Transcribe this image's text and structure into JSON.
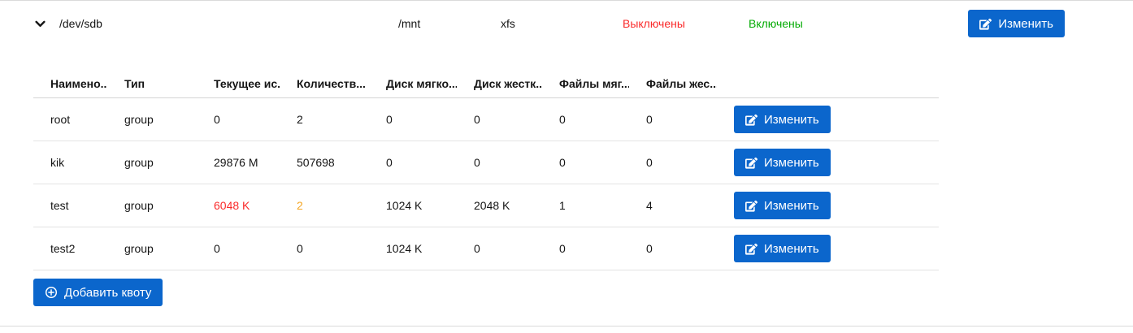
{
  "colors": {
    "primary": "#0b66cc",
    "danger": "#fa2a2a",
    "success": "#04ab04",
    "warning": "#f5a623"
  },
  "device_row": {
    "device": "/dev/sdb",
    "mount_point": "/mnt",
    "fs_type": "xfs",
    "user_quota_status": {
      "label": "Выключены",
      "color": "danger"
    },
    "group_quota_status": {
      "label": "Включены",
      "color": "success"
    },
    "edit_label": "Изменить"
  },
  "quota_table": {
    "columns": [
      "Наимено...",
      "Тип",
      "Текущее ис...",
      "Количеств...",
      "Диск мягко...",
      "Диск жестк...",
      "Файлы мяг...",
      "Файлы жес..."
    ],
    "edit_label": "Изменить",
    "rows": [
      {
        "cells": [
          {
            "text": "root"
          },
          {
            "text": "group"
          },
          {
            "text": "0"
          },
          {
            "text": "2"
          },
          {
            "text": "0"
          },
          {
            "text": "0"
          },
          {
            "text": "0"
          },
          {
            "text": "0"
          }
        ]
      },
      {
        "cells": [
          {
            "text": "kik"
          },
          {
            "text": "group"
          },
          {
            "text": "29876 M"
          },
          {
            "text": "507698"
          },
          {
            "text": "0"
          },
          {
            "text": "0"
          },
          {
            "text": "0"
          },
          {
            "text": "0"
          }
        ]
      },
      {
        "cells": [
          {
            "text": "test"
          },
          {
            "text": "group"
          },
          {
            "text": "6048 K",
            "color": "danger"
          },
          {
            "text": "2",
            "color": "warning"
          },
          {
            "text": "1024 K"
          },
          {
            "text": "2048 K"
          },
          {
            "text": "1"
          },
          {
            "text": "4"
          }
        ]
      },
      {
        "cells": [
          {
            "text": "test2"
          },
          {
            "text": "group"
          },
          {
            "text": "0"
          },
          {
            "text": "0"
          },
          {
            "text": "1024 K"
          },
          {
            "text": "0"
          },
          {
            "text": "0"
          },
          {
            "text": "0"
          }
        ]
      }
    ]
  },
  "add_button": {
    "label": "Добавить квоту"
  }
}
